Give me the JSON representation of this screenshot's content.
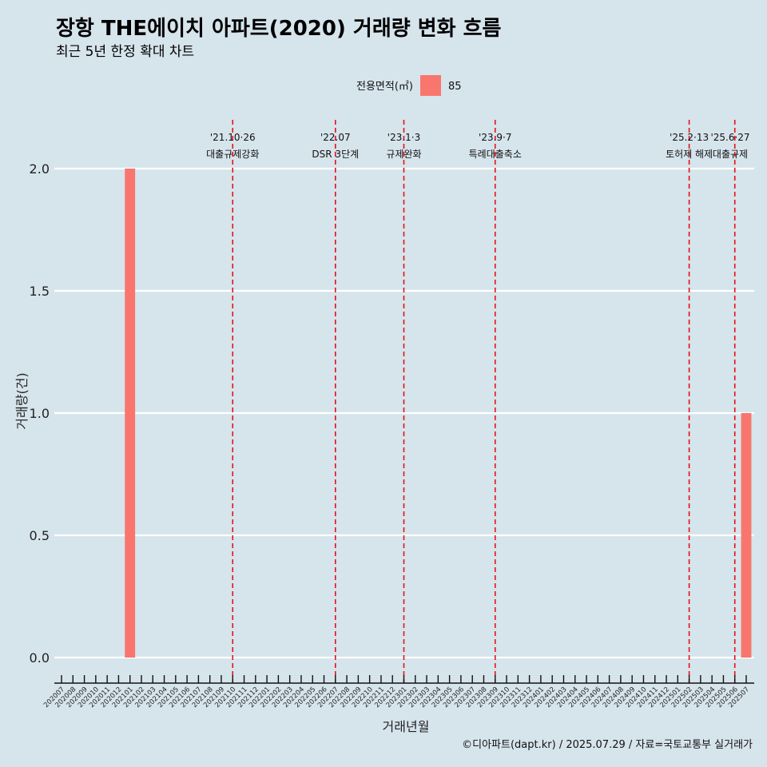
{
  "chart_data": {
    "type": "bar",
    "title": "장항 THE에이치 아파트(2020) 거래량 변화 흐름",
    "subtitle": "최근 5년 한정 확대 차트",
    "xlabel": "거래년월",
    "ylabel": "거래량(건)",
    "ylim": [
      0,
      2
    ],
    "y_ticks": [
      "0.0",
      "0.5",
      "1.0",
      "1.5",
      "2.0"
    ],
    "grid": true,
    "legend": {
      "title": "전용면적(㎡)",
      "position": "top",
      "entries": [
        {
          "label": "85",
          "color": "#f8766d"
        }
      ]
    },
    "categories": [
      "202007",
      "202008",
      "202009",
      "202010",
      "202011",
      "202012",
      "202101",
      "202102",
      "202103",
      "202104",
      "202105",
      "202106",
      "202107",
      "202108",
      "202109",
      "202110",
      "202111",
      "202112",
      "202201",
      "202202",
      "202203",
      "202204",
      "202205",
      "202206",
      "202207",
      "202208",
      "202209",
      "202210",
      "202211",
      "202212",
      "202301",
      "202302",
      "202303",
      "202304",
      "202305",
      "202306",
      "202307",
      "202308",
      "202309",
      "202310",
      "202311",
      "202312",
      "202401",
      "202402",
      "202403",
      "202404",
      "202405",
      "202406",
      "202407",
      "202408",
      "202409",
      "202410",
      "202411",
      "202412",
      "202501",
      "202502",
      "202503",
      "202504",
      "202505",
      "202506",
      "202507"
    ],
    "series": [
      {
        "name": "85",
        "color": "#f8766d",
        "values": [
          0,
          0,
          0,
          0,
          0,
          0,
          2,
          0,
          0,
          0,
          0,
          0,
          0,
          0,
          0,
          0,
          0,
          0,
          0,
          0,
          0,
          0,
          0,
          0,
          0,
          0,
          0,
          0,
          0,
          0,
          0,
          0,
          0,
          0,
          0,
          0,
          0,
          0,
          0,
          0,
          0,
          0,
          0,
          0,
          0,
          0,
          0,
          0,
          0,
          0,
          0,
          0,
          0,
          0,
          0,
          0,
          0,
          0,
          0,
          0,
          1
        ]
      }
    ],
    "events": [
      {
        "x": "202110",
        "date": "'21.10·26",
        "label": "대출규제강화"
      },
      {
        "x": "202207",
        "date": "'22.07",
        "label": "DSR 3단계"
      },
      {
        "x": "202301",
        "date": "'23.1·3",
        "label": "규제완화"
      },
      {
        "x": "202309",
        "date": "'23.9·7",
        "label": "특례대출축소"
      },
      {
        "x": "202502",
        "date": "'25.2·13",
        "label": "토허제 해제"
      },
      {
        "x": "202506",
        "date": "'25.6·27",
        "label": "대출규제"
      }
    ],
    "caption": "©디아파트(dapt.kr) / 2025.07.29 / 자료=국토교통부 실거래가"
  }
}
